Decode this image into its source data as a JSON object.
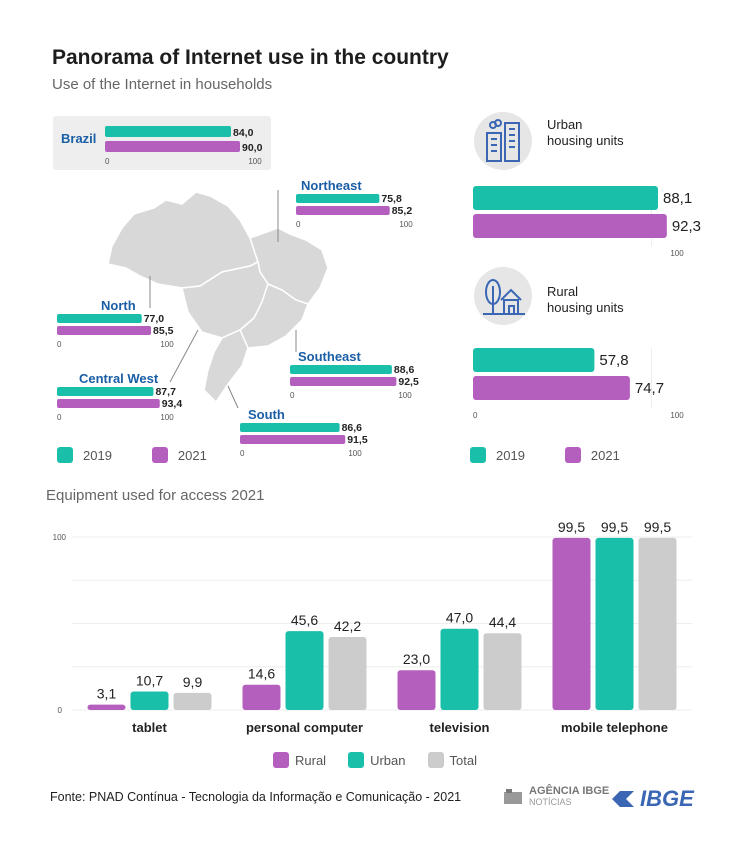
{
  "header": {
    "title": "Panorama of Internet use in the country",
    "subtitle": "Use of the Internet in households"
  },
  "colors": {
    "y2019": "#1abfaa",
    "y2021": "#b45fbe",
    "rural": "#b45fbe",
    "urban": "#1abfaa",
    "total": "#cccccc",
    "region_label": "#1a5ea6",
    "map_fill": "#d8d8d8"
  },
  "regions": [
    {
      "name": "Brazil",
      "v2019": "84,0",
      "v2021": "90,0",
      "tick0": "0",
      "tick100": "100"
    },
    {
      "name": "Northeast",
      "v2019": "75,8",
      "v2021": "85,2",
      "tick0": "0",
      "tick100": "100"
    },
    {
      "name": "North",
      "v2019": "77,0",
      "v2021": "85,5",
      "tick0": "0",
      "tick100": "100"
    },
    {
      "name": "Southeast",
      "v2019": "88,6",
      "v2021": "92,5",
      "tick0": "0",
      "tick100": "100"
    },
    {
      "name": "Central West",
      "v2019": "87,7",
      "v2021": "93,4",
      "tick0": "0",
      "tick100": "100"
    },
    {
      "name": "South",
      "v2019": "86,6",
      "v2021": "91,5",
      "tick0": "0",
      "tick100": "100"
    }
  ],
  "housing": [
    {
      "label_line1": "Urban",
      "label_line2": "housing units",
      "v2019": "88,1",
      "v2021": "92,3",
      "tick0": "",
      "tick100": "100",
      "icon": "city-buildings-icon"
    },
    {
      "label_line1": "Rural",
      "label_line2": "housing units",
      "v2019": "57,8",
      "v2021": "74,7",
      "tick0": "0",
      "tick100": "100",
      "icon": "farm-house-icon"
    }
  ],
  "legend_years": [
    {
      "label": "2019",
      "color": "#1abfaa"
    },
    {
      "label": "2021",
      "color": "#b45fbe"
    }
  ],
  "equipment": {
    "title": "Equipment used for access 2021",
    "ytick_0": "0",
    "ytick_100": "100",
    "legend": [
      {
        "label": "Rural",
        "color": "#b45fbe"
      },
      {
        "label": "Urban",
        "color": "#1abfaa"
      },
      {
        "label": "Total",
        "color": "#cccccc"
      }
    ]
  },
  "chart_data": [
    {
      "type": "bar",
      "title": "Use of the Internet in households",
      "categories": [
        "Brazil",
        "Northeast",
        "North",
        "Southeast",
        "Central West",
        "South",
        "Urban housing units",
        "Rural housing units"
      ],
      "series": [
        {
          "name": "2019",
          "values": [
            84.0,
            75.8,
            77.0,
            88.6,
            87.7,
            86.6,
            88.1,
            57.8
          ]
        },
        {
          "name": "2021",
          "values": [
            90.0,
            85.2,
            85.5,
            92.5,
            93.4,
            91.5,
            92.3,
            74.7
          ]
        }
      ],
      "xlim": [
        0,
        100
      ],
      "orientation": "horizontal"
    },
    {
      "type": "bar",
      "title": "Equipment used for access 2021",
      "categories": [
        "tablet",
        "personal computer",
        "television",
        "mobile telephone"
      ],
      "series": [
        {
          "name": "Rural",
          "values": [
            3.1,
            14.6,
            23.0,
            99.5
          ],
          "labels": [
            "3,1",
            "14,6",
            "23,0",
            "99,5"
          ]
        },
        {
          "name": "Urban",
          "values": [
            10.7,
            45.6,
            47.0,
            99.5
          ],
          "labels": [
            "10,7",
            "45,6",
            "47,0",
            "99,5"
          ]
        },
        {
          "name": "Total",
          "values": [
            9.9,
            42.2,
            44.4,
            99.5
          ],
          "labels": [
            "9,9",
            "42,2",
            "44,4",
            "99,5"
          ]
        }
      ],
      "ylim": [
        0,
        100
      ],
      "grid": true,
      "legend": "bottom"
    }
  ],
  "footer": {
    "source": "Fonte: PNAD Contínua - Tecnologia da Informação e Comunicação - 2021",
    "agencia_line1": "AGÊNCIA IBGE",
    "agencia_line2": "NOTÍCIAS",
    "ibge": "IBGE"
  }
}
